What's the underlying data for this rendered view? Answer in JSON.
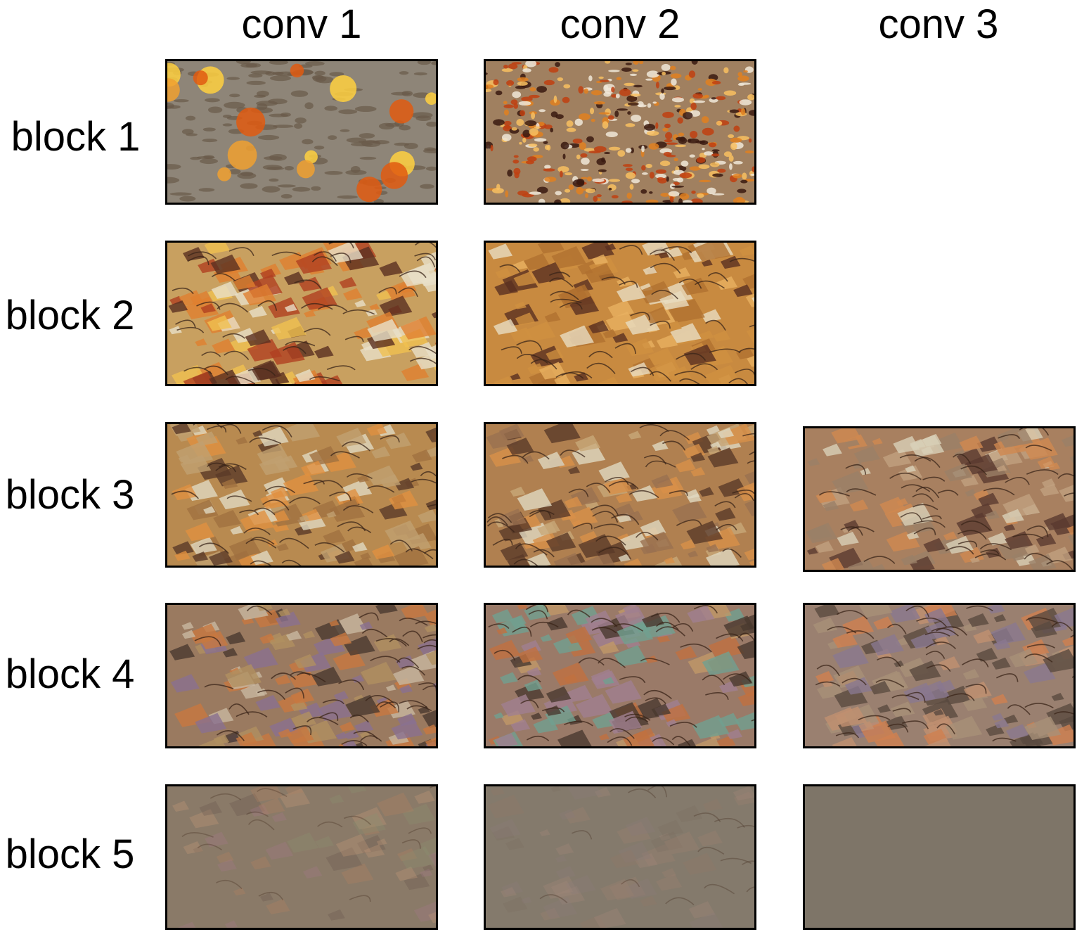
{
  "column_headers": [
    "conv 1",
    "conv 2",
    "conv 3"
  ],
  "row_headers": [
    "block 1",
    "block 2",
    "block 3",
    "block 4",
    "block 5"
  ],
  "tiles": [
    {
      "block": 1,
      "conv": 1,
      "base": "#8e8578",
      "accents": [
        "#f0a030",
        "#e05a10",
        "#ffd040",
        "#6a5a48",
        "#d8d0c0"
      ],
      "style": "spots"
    },
    {
      "block": 1,
      "conv": 2,
      "base": "#a08060",
      "accents": [
        "#f0e8d8",
        "#e08020",
        "#3a1a10",
        "#c04010",
        "#f8c060"
      ],
      "style": "speckle"
    },
    {
      "block": 2,
      "conv": 1,
      "base": "#c8a060",
      "accents": [
        "#e08030",
        "#f0c050",
        "#5a3020",
        "#e8e0c8",
        "#b04020"
      ],
      "style": "flakes"
    },
    {
      "block": 2,
      "conv": 2,
      "base": "#c88a40",
      "accents": [
        "#e8b060",
        "#5a3020",
        "#e8dcc0",
        "#b07030",
        "#d09040"
      ],
      "style": "flakes"
    },
    {
      "block": 3,
      "conv": 1,
      "base": "#b88a50",
      "accents": [
        "#e09040",
        "#5a3a28",
        "#e0d8c0",
        "#a07040",
        "#c0a070"
      ],
      "style": "flakes"
    },
    {
      "block": 3,
      "conv": 2,
      "base": "#b08050",
      "accents": [
        "#d89048",
        "#5a3a28",
        "#e0d8c0",
        "#9a7050",
        "#c8a878"
      ],
      "style": "flakes"
    },
    {
      "block": 3,
      "conv": 3,
      "base": "#a88060",
      "accents": [
        "#d08850",
        "#5a3a30",
        "#d8d0b8",
        "#9a8068",
        "#c0a080"
      ],
      "style": "flakes"
    },
    {
      "block": 4,
      "conv": 1,
      "base": "#9a7a60",
      "accents": [
        "#c87840",
        "#4a3a30",
        "#c8b8a0",
        "#8a7090",
        "#b09060"
      ],
      "style": "flakes"
    },
    {
      "block": 4,
      "conv": 2,
      "base": "#9a7a68",
      "accents": [
        "#c07040",
        "#4a3a30",
        "#a08090",
        "#70a090",
        "#c09868"
      ],
      "style": "flakes"
    },
    {
      "block": 4,
      "conv": 3,
      "base": "#9a8070",
      "accents": [
        "#d08050",
        "#5a4a40",
        "#8a7890",
        "#c09070",
        "#a89078"
      ],
      "style": "flakes"
    },
    {
      "block": 5,
      "conv": 1,
      "base": "#8a7a68",
      "accents": [
        "#b08060",
        "#6a5a50",
        "#8a9070",
        "#a07888",
        "#c09878"
      ],
      "style": "faint"
    },
    {
      "block": 5,
      "conv": 2,
      "base": "#847a6c",
      "accents": [
        "#907868",
        "#7a7060",
        "#9a8070",
        "#8a7a78",
        "#a08878"
      ],
      "style": "faint"
    },
    {
      "block": 5,
      "conv": 3,
      "base": "#7e7568",
      "accents": [],
      "style": "flat"
    }
  ]
}
